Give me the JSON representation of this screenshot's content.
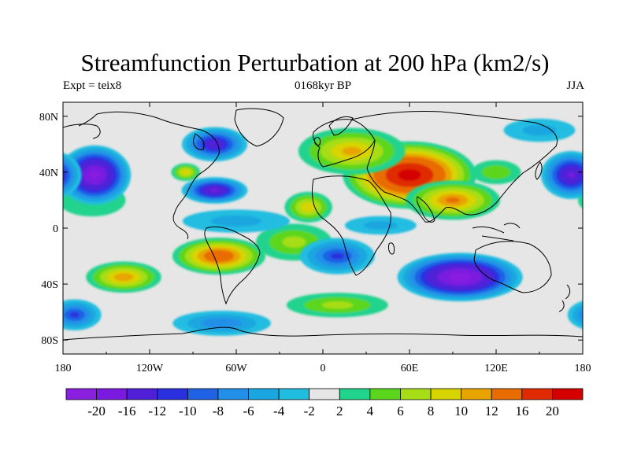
{
  "title": "Streamfunction Perturbation at 200 hPa (km2/s)",
  "subtitle_left": "Expt = teix8",
  "subtitle_center": "0168kyr BP",
  "subtitle_right": "JJA",
  "map": {
    "lon_range": [
      -180,
      180
    ],
    "lat_range": [
      -90,
      90
    ],
    "projection": "cylindrical equidistant",
    "x_ticks": [
      {
        "value": -180,
        "label": "180"
      },
      {
        "value": -120,
        "label": "120W"
      },
      {
        "value": -60,
        "label": "60W"
      },
      {
        "value": 0,
        "label": "0"
      },
      {
        "value": 60,
        "label": "60E"
      },
      {
        "value": 120,
        "label": "120E"
      },
      {
        "value": 180,
        "label": "180"
      }
    ],
    "y_ticks": [
      {
        "value": 80,
        "label": "80N"
      },
      {
        "value": 40,
        "label": "40N"
      },
      {
        "value": 0,
        "label": "0"
      },
      {
        "value": -40,
        "label": "40S"
      },
      {
        "value": -80,
        "label": "80S"
      }
    ]
  },
  "colorbar": {
    "levels": [
      "-20",
      "-16",
      "-12",
      "-10",
      "-8",
      "-6",
      "-4",
      "-2",
      "2",
      "4",
      "6",
      "8",
      "10",
      "12",
      "16",
      "20"
    ],
    "colors": [
      "#8a1fe0",
      "#7a1ae0",
      "#5020d8",
      "#2a30e0",
      "#1f62e6",
      "#2290e8",
      "#1aa6e0",
      "#20bde0",
      "#e6e6e6",
      "#22d38e",
      "#5cd61c",
      "#a6dd16",
      "#d8d400",
      "#e8a400",
      "#e86c00",
      "#e02a00",
      "#d40000"
    ]
  },
  "fields": [
    {
      "lon": 60,
      "lat": 38,
      "rx": 48,
      "ry": 25,
      "v": 22
    },
    {
      "lon": 20,
      "lat": 55,
      "rx": 40,
      "ry": 18,
      "v": 10
    },
    {
      "lon": 90,
      "lat": 20,
      "rx": 35,
      "ry": 15,
      "v": 12
    },
    {
      "lon": -72,
      "lat": -20,
      "rx": 34,
      "ry": 14,
      "v": 15
    },
    {
      "lon": -138,
      "lat": -35,
      "rx": 28,
      "ry": 12,
      "v": 11
    },
    {
      "lon": -10,
      "lat": 15,
      "rx": 18,
      "ry": 12,
      "v": 9
    },
    {
      "lon": -20,
      "lat": -10,
      "rx": 30,
      "ry": 15,
      "v": 6
    },
    {
      "lon": 10,
      "lat": -55,
      "rx": 40,
      "ry": 10,
      "v": 6
    },
    {
      "lon": -95,
      "lat": 40,
      "rx": 11,
      "ry": 7,
      "v": 9
    },
    {
      "lon": 120,
      "lat": 40,
      "rx": 20,
      "ry": 10,
      "v": 5
    },
    {
      "lon": -160,
      "lat": 20,
      "rx": 30,
      "ry": 15,
      "v": 3
    },
    {
      "lon": 95,
      "lat": -35,
      "rx": 45,
      "ry": 18,
      "v": -22
    },
    {
      "lon": -158,
      "lat": 38,
      "rx": 26,
      "ry": 22,
      "v": -21
    },
    {
      "lon": 172,
      "lat": 38,
      "rx": 22,
      "ry": 18,
      "v": -16
    },
    {
      "lon": -75,
      "lat": 27,
      "rx": 24,
      "ry": 10,
      "v": -16
    },
    {
      "lon": -75,
      "lat": 60,
      "rx": 24,
      "ry": 13,
      "v": -14
    },
    {
      "lon": 10,
      "lat": -20,
      "rx": 28,
      "ry": 14,
      "v": -10
    },
    {
      "lon": -70,
      "lat": -68,
      "rx": 38,
      "ry": 10,
      "v": -7
    },
    {
      "lon": -172,
      "lat": -62,
      "rx": 20,
      "ry": 12,
      "v": -10
    },
    {
      "lon": -60,
      "lat": 5,
      "rx": 45,
      "ry": 10,
      "v": -4
    },
    {
      "lon": 40,
      "lat": 2,
      "rx": 30,
      "ry": 8,
      "v": -4
    },
    {
      "lon": 150,
      "lat": 70,
      "rx": 30,
      "ry": 10,
      "v": -4
    }
  ]
}
